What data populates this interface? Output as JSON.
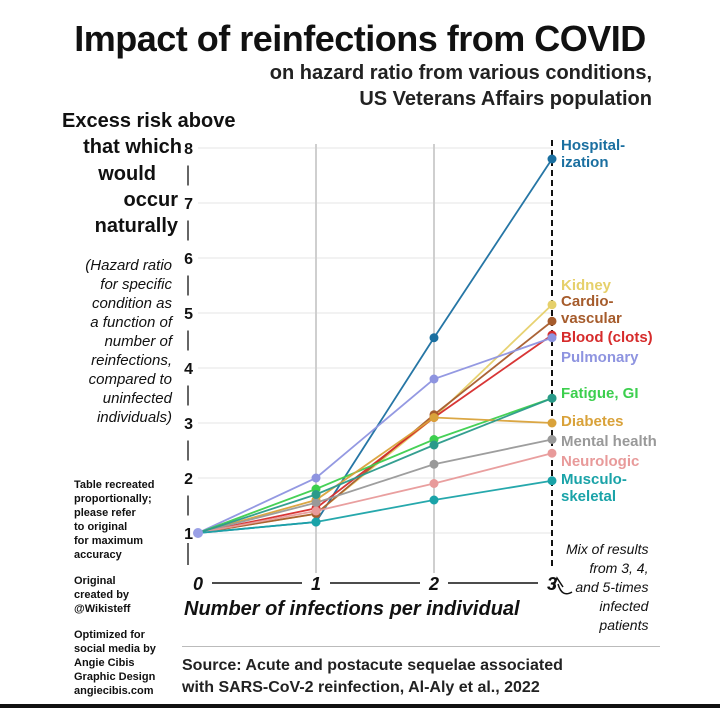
{
  "title": "Impact of reinfections from COVID",
  "subtitle_line1": "on hazard ratio from various conditions,",
  "subtitle_line2": "US Veterans Affairs population",
  "ylabel": {
    "head": "Excess risk above",
    "line2": "that which",
    "line3": "would",
    "line4": "occur",
    "line5": "naturally",
    "note": [
      "(Hazard ratio",
      "for specific",
      "condition as",
      "a function of",
      "number of",
      "reinfections,",
      "compared to",
      "uninfected",
      "individuals)"
    ]
  },
  "side_notes": {
    "recreated": [
      "Table recreated",
      "proportionally;",
      "please refer",
      "to original",
      "for maximum",
      "accuracy"
    ],
    "original": [
      "Original",
      "created by",
      "@Wikisteff"
    ],
    "optimized": [
      "Optimized for",
      "social media by",
      "Angie Cibis",
      "Graphic Design",
      "angiecibis.com"
    ]
  },
  "xlabel": "Number of infections per individual",
  "mix_note": [
    "Mix of results",
    "from 3, 4,",
    "and 5-times",
    "infected",
    "patients"
  ],
  "source": [
    "Source: Acute and postacute sequelae associated",
    "with SARS-CoV-2 reinfection, Al-Aly et al., 2022"
  ],
  "chart_data": {
    "type": "line",
    "x": [
      0,
      1,
      2,
      3
    ],
    "xticks": [
      "0",
      "1",
      "2",
      "3"
    ],
    "yticks": [
      "1",
      "2",
      "3",
      "4",
      "5",
      "6",
      "7",
      "8"
    ],
    "ylim": [
      1,
      8
    ],
    "xlim": [
      0,
      3
    ],
    "series": [
      {
        "name": "Hospital-\nization",
        "color": "#1a6fa0",
        "values": [
          1.0,
          1.2,
          4.55,
          7.8
        ]
      },
      {
        "name": "Kidney",
        "color": "#e6d06a",
        "values": [
          1.0,
          1.35,
          3.1,
          5.15
        ]
      },
      {
        "name": "Cardio-\nvascular",
        "color": "#a65c2c",
        "values": [
          1.0,
          1.35,
          3.15,
          4.85
        ]
      },
      {
        "name": "Blood (clots)",
        "color": "#d62b2b",
        "values": [
          1.0,
          1.45,
          3.1,
          4.6
        ]
      },
      {
        "name": "Pulmonary",
        "color": "#8e94e0",
        "values": [
          1.0,
          2.0,
          3.8,
          4.55
        ]
      },
      {
        "name": "Fatigue, GI",
        "color": "#3ccf4e",
        "values": [
          1.0,
          1.8,
          2.7,
          3.45
        ]
      },
      {
        "name": "Diabetes",
        "color": "#d9a23a",
        "values": [
          1.0,
          1.6,
          3.1,
          3.0
        ]
      },
      {
        "name": "Mental health",
        "color": "#999999",
        "values": [
          1.0,
          1.55,
          2.25,
          2.7
        ]
      },
      {
        "name": "Neurologic",
        "color": "#e89a9a",
        "values": [
          1.0,
          1.4,
          1.9,
          2.45
        ]
      },
      {
        "name": "Musculo-\nskeletal",
        "color": "#1aa3a8",
        "values": [
          1.0,
          1.2,
          1.6,
          1.95
        ]
      },
      {
        "name": "",
        "color": "#2a9a8a",
        "values": [
          1.0,
          1.7,
          2.6,
          3.45
        ]
      }
    ]
  }
}
